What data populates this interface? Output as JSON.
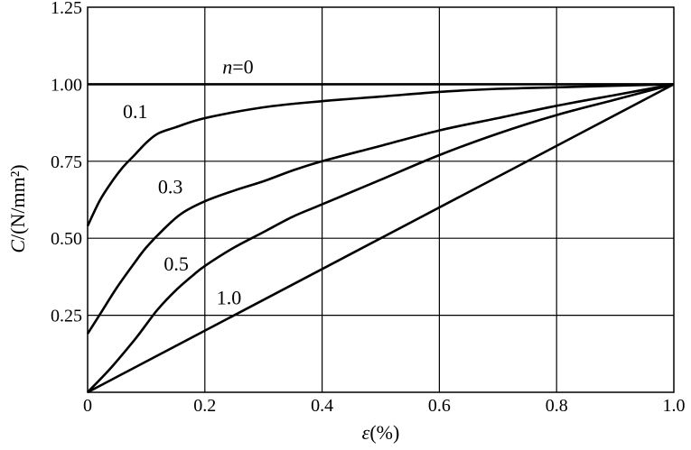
{
  "chart_data": {
    "type": "line",
    "xlabel_symbol": "ε",
    "xlabel_unit": "(%)",
    "ylabel_symbol": "C",
    "ylabel_unit": "/(N/mm²)",
    "xlim": [
      0,
      1.0
    ],
    "ylim": [
      0,
      1.25
    ],
    "x_ticks": [
      {
        "value": 0,
        "label": "0"
      },
      {
        "value": 0.2,
        "label": "0.2"
      },
      {
        "value": 0.4,
        "label": "0.4"
      },
      {
        "value": 0.6,
        "label": "0.6"
      },
      {
        "value": 0.8,
        "label": "0.8"
      },
      {
        "value": 1.0,
        "label": "1.0"
      }
    ],
    "y_ticks": [
      {
        "value": 0.25,
        "label": "0.25"
      },
      {
        "value": 0.5,
        "label": "0.50"
      },
      {
        "value": 0.75,
        "label": "0.75"
      },
      {
        "value": 1.0,
        "label": "1.00"
      },
      {
        "value": 1.25,
        "label": "1.25"
      }
    ],
    "grid": true,
    "series": [
      {
        "name": "n=0",
        "x": [
          0,
          1.0
        ],
        "y": [
          1.0,
          1.0
        ]
      },
      {
        "name": "0.1",
        "x": [
          0,
          0.02,
          0.04,
          0.06,
          0.08,
          0.1,
          0.12,
          0.15,
          0.2,
          0.3,
          0.4,
          0.5,
          0.6,
          0.7,
          0.8,
          0.9,
          1.0
        ],
        "y": [
          0.54,
          0.62,
          0.68,
          0.73,
          0.77,
          0.81,
          0.84,
          0.86,
          0.89,
          0.925,
          0.945,
          0.96,
          0.975,
          0.985,
          0.99,
          0.995,
          1.0
        ]
      },
      {
        "name": "0.3",
        "x": [
          0,
          0.02,
          0.05,
          0.08,
          0.1,
          0.13,
          0.16,
          0.2,
          0.25,
          0.3,
          0.35,
          0.4,
          0.5,
          0.6,
          0.7,
          0.8,
          0.9,
          1.0
        ],
        "y": [
          0.19,
          0.25,
          0.34,
          0.42,
          0.47,
          0.53,
          0.58,
          0.62,
          0.655,
          0.685,
          0.72,
          0.75,
          0.8,
          0.85,
          0.89,
          0.93,
          0.965,
          1.0
        ]
      },
      {
        "name": "0.5",
        "x": [
          0,
          0.04,
          0.08,
          0.1,
          0.12,
          0.15,
          0.18,
          0.2,
          0.25,
          0.3,
          0.35,
          0.4,
          0.5,
          0.6,
          0.7,
          0.8,
          0.9,
          1.0
        ],
        "y": [
          0.0,
          0.08,
          0.17,
          0.22,
          0.27,
          0.33,
          0.38,
          0.41,
          0.47,
          0.52,
          0.57,
          0.61,
          0.69,
          0.77,
          0.84,
          0.9,
          0.95,
          1.0
        ]
      },
      {
        "name": "1.0",
        "x": [
          0,
          1.0
        ],
        "y": [
          0.0,
          1.0
        ]
      }
    ],
    "annotations": [
      {
        "text_italic": "n",
        "text": "=0",
        "x": 0.23,
        "y": 1.035
      },
      {
        "text": "0.1",
        "x": 0.06,
        "y": 0.89
      },
      {
        "text": "0.3",
        "x": 0.12,
        "y": 0.645
      },
      {
        "text": "0.5",
        "x": 0.13,
        "y": 0.395
      },
      {
        "text": "1.0",
        "x": 0.22,
        "y": 0.285
      }
    ]
  }
}
